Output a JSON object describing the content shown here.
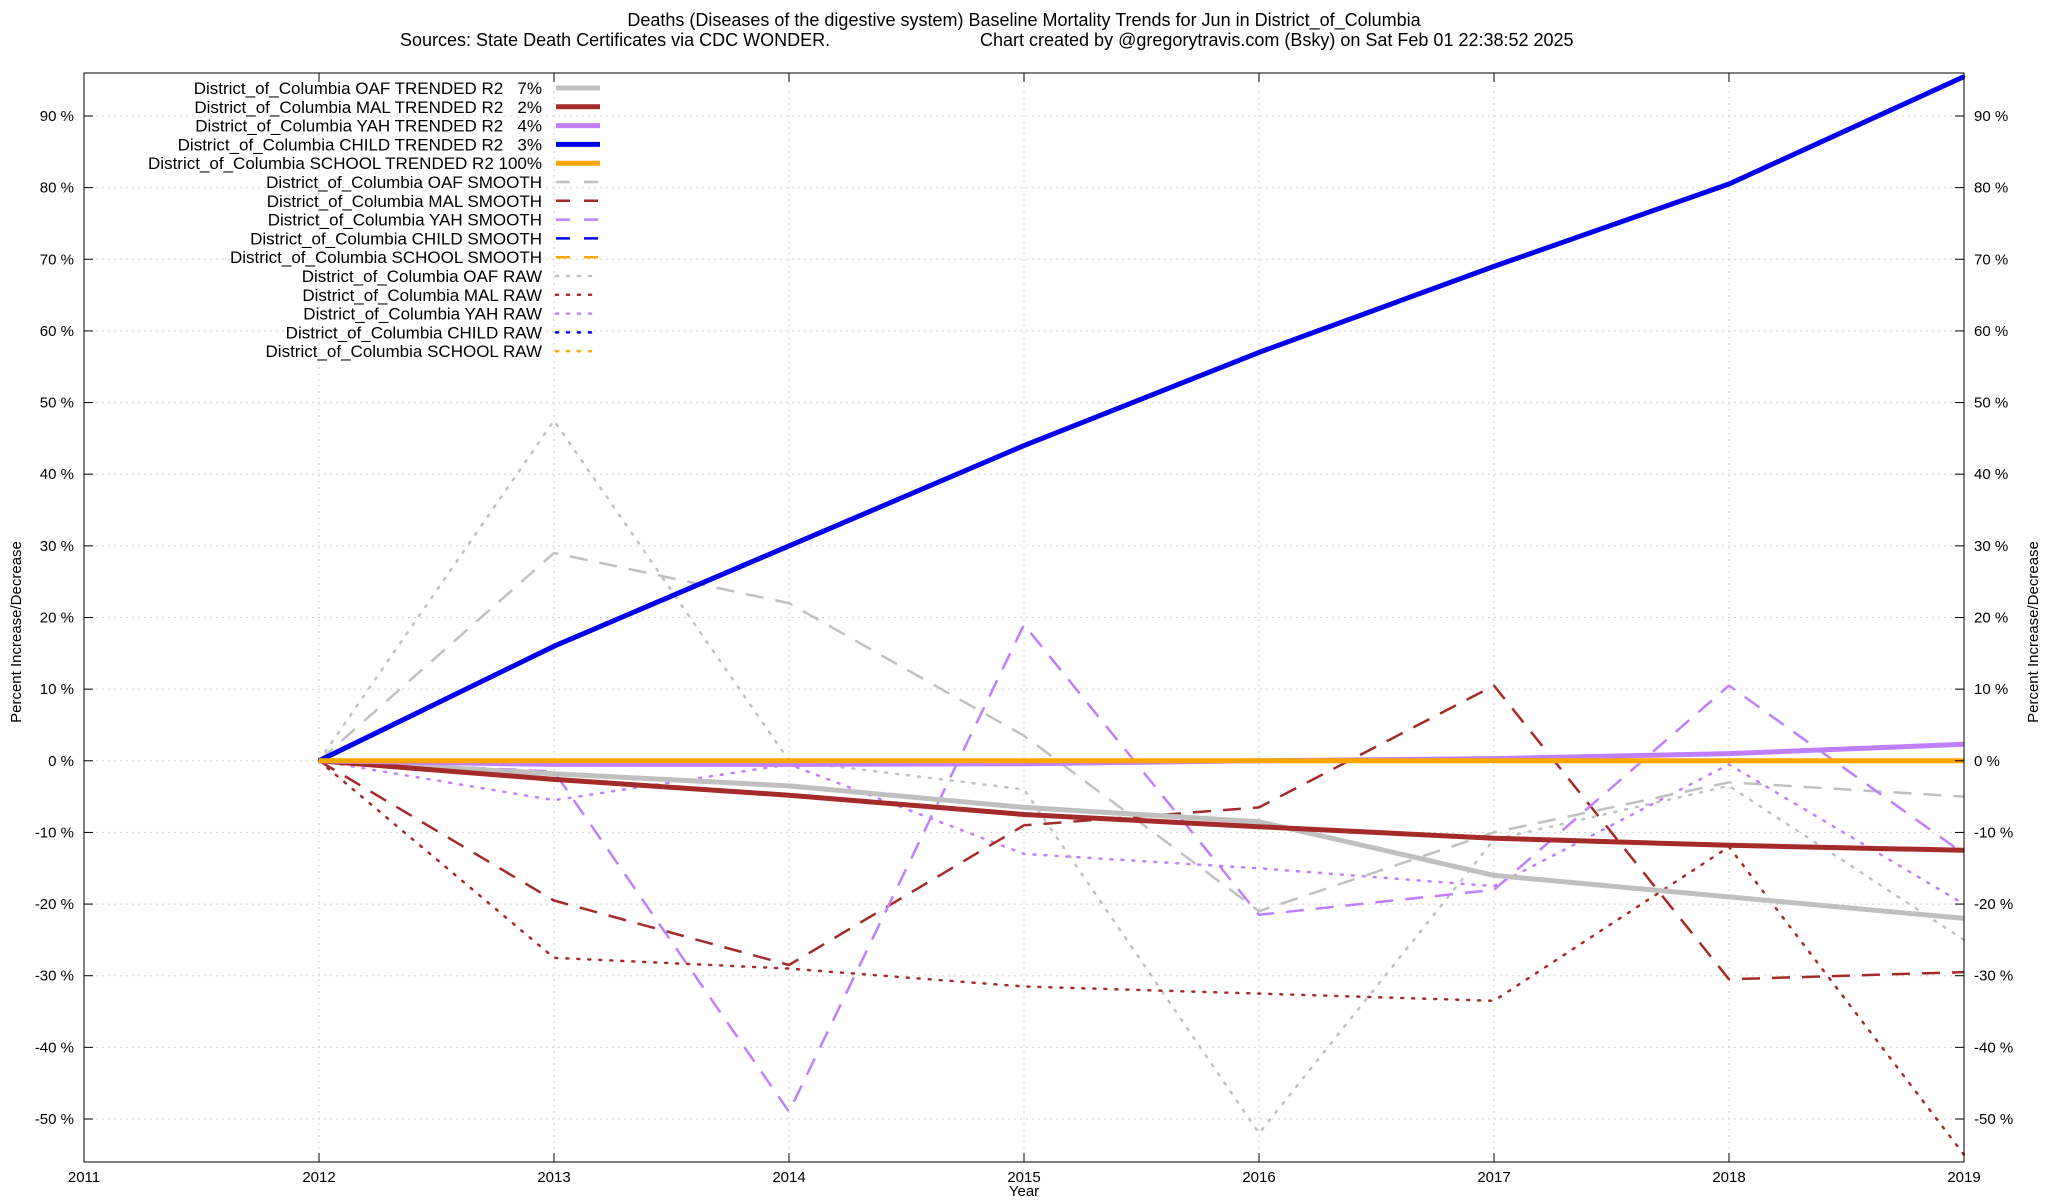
{
  "chart_data": {
    "type": "line",
    "title_line1": "Deaths (Diseases of the digestive system)  Baseline Mortality Trends for Jun in District_of_Columbia",
    "title_line2_left": "Sources: State Death Certificates via CDC WONDER.",
    "title_line2_right": "Chart created by @gregorytravis.com (Bsky) on Sat Feb 01 22:38:52 2025",
    "xlabel": "Year",
    "ylabel_left": "Percent Increase/Decrease",
    "ylabel_right": "Percent Increase/Decrease",
    "xlim": [
      2011,
      2019
    ],
    "ylim": [
      -56,
      96
    ],
    "x_ticks": [
      "2011",
      "2012",
      "2013",
      "2014",
      "2015",
      "2016",
      "2017",
      "2018",
      "2019"
    ],
    "y_ticks": [
      {
        "value": 90,
        "label": "90 %"
      },
      {
        "value": 80,
        "label": "80 %"
      },
      {
        "value": 70,
        "label": "70 %"
      },
      {
        "value": 60,
        "label": "60 %"
      },
      {
        "value": 50,
        "label": "50 %"
      },
      {
        "value": 40,
        "label": "40 %"
      },
      {
        "value": 30,
        "label": "30 %"
      },
      {
        "value": 20,
        "label": "20 %"
      },
      {
        "value": 10,
        "label": "10 %"
      },
      {
        "value": 0,
        "label": "0 %"
      },
      {
        "value": -10,
        "label": "-10 %"
      },
      {
        "value": -20,
        "label": "-20 %"
      },
      {
        "value": -30,
        "label": "-30 %"
      },
      {
        "value": -40,
        "label": "-40 %"
      },
      {
        "value": -50,
        "label": "-50 %"
      }
    ],
    "grid": true,
    "legend_position": "top-left",
    "x": [
      2012,
      2013,
      2014,
      2015,
      2016,
      2017,
      2018,
      2019
    ],
    "series": [
      {
        "name": "District_of_Columbia OAF TRENDED R2   7%",
        "color": "#c0c0c0",
        "style": "solid",
        "width": 5,
        "values": [
          0,
          -1.8,
          -3.5,
          -6.5,
          -8.5,
          -16,
          -19,
          -22
        ]
      },
      {
        "name": "District_of_Columbia MAL TRENDED R2   2%",
        "color": "#a52a2a",
        "style": "solid",
        "width": 5,
        "values": [
          0,
          -2.6,
          -4.8,
          -7.5,
          -9.2,
          -10.8,
          -11.8,
          -12.5
        ]
      },
      {
        "name": "District_of_Columbia YAH TRENDED R2   4%",
        "color": "#bf7fff",
        "style": "solid",
        "width": 5,
        "values": [
          0,
          -0.5,
          -0.5,
          -0.4,
          0,
          0.3,
          1,
          2.3
        ]
      },
      {
        "name": "District_of_Columbia CHILD TRENDED R2   3%",
        "color": "#0000ee",
        "style": "solid",
        "width": 5,
        "values": [
          0,
          16,
          30,
          44,
          57,
          69,
          80.5,
          95.5
        ]
      },
      {
        "name": "District_of_Columbia SCHOOL TRENDED R2 100%",
        "color": "#ffa500",
        "style": "solid",
        "width": 5,
        "values": [
          0,
          0,
          0,
          0,
          0,
          0,
          0,
          0
        ]
      },
      {
        "name": "District_of_Columbia OAF SMOOTH",
        "color": "#c0c0c0",
        "style": "dashed",
        "width": 2.5,
        "values": [
          0,
          29,
          22,
          3.5,
          -21,
          -10,
          -3,
          -5
        ]
      },
      {
        "name": "District_of_Columbia MAL SMOOTH",
        "color": "#a52a2a",
        "style": "dashed",
        "width": 2.5,
        "values": [
          0,
          -19.5,
          -28.5,
          -9,
          -6.5,
          10.5,
          -30.5,
          -29.5
        ]
      },
      {
        "name": "District_of_Columbia YAH SMOOTH",
        "color": "#bf7fff",
        "style": "dashed",
        "width": 2.5,
        "values": [
          0,
          -1.5,
          -49,
          19,
          -21.5,
          -18,
          10.5,
          -13
        ]
      },
      {
        "name": "District_of_Columbia CHILD SMOOTH",
        "color": "#0000ee",
        "style": "dashed",
        "width": 2.5,
        "values": [
          0,
          16,
          30,
          44,
          57,
          69,
          80.5,
          95.5
        ]
      },
      {
        "name": "District_of_Columbia SCHOOL SMOOTH",
        "color": "#ffa500",
        "style": "dashed",
        "width": 2.5,
        "values": [
          0,
          0,
          0,
          0,
          0,
          0,
          0,
          0
        ]
      },
      {
        "name": "District_of_Columbia OAF RAW",
        "color": "#c0c0c0",
        "style": "dotted",
        "width": 2.5,
        "values": [
          0,
          47.5,
          0,
          -4,
          -52,
          -11,
          -3.5,
          -25
        ]
      },
      {
        "name": "District_of_Columbia MAL RAW",
        "color": "#a52a2a",
        "style": "dotted",
        "width": 2.5,
        "values": [
          0,
          -27.5,
          -29,
          -31.5,
          -32.5,
          -33.5,
          -12,
          -55
        ]
      },
      {
        "name": "District_of_Columbia YAH RAW",
        "color": "#bf7fff",
        "style": "dotted",
        "width": 2.5,
        "values": [
          0,
          -5.5,
          -0.5,
          -13,
          -15,
          -17.5,
          -0.5,
          -20
        ]
      },
      {
        "name": "District_of_Columbia CHILD RAW",
        "color": "#0000ee",
        "style": "dotted",
        "width": 2.5,
        "values": [
          0,
          16,
          30,
          44,
          57,
          69,
          80.5,
          95.5
        ]
      },
      {
        "name": "District_of_Columbia SCHOOL RAW",
        "color": "#ffa500",
        "style": "dotted",
        "width": 2.5,
        "values": [
          0,
          0,
          0,
          0,
          0,
          0,
          0,
          0
        ]
      }
    ]
  }
}
